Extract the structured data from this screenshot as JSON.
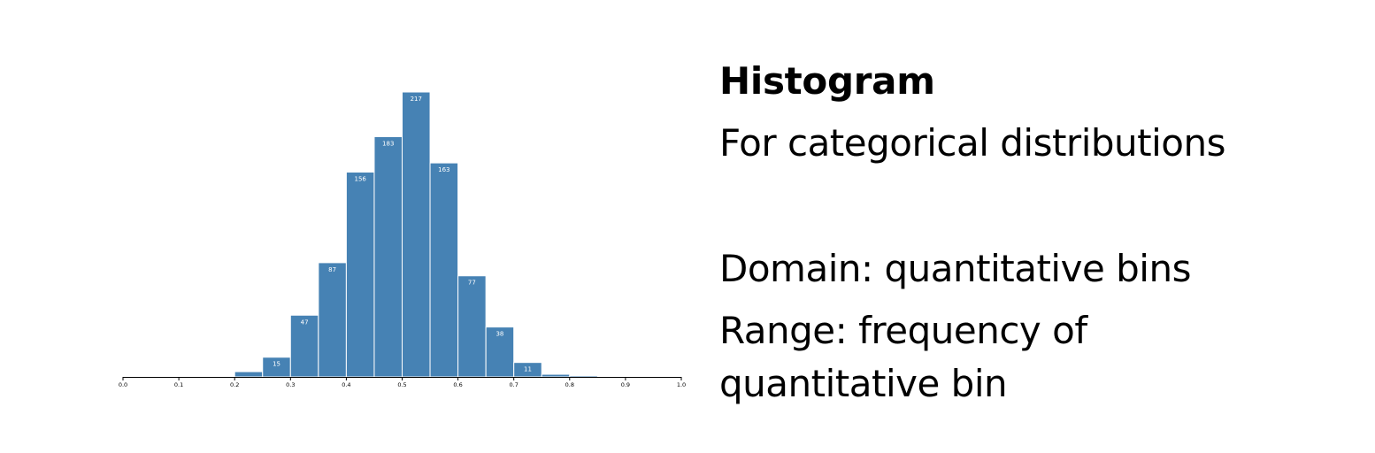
{
  "slide": {
    "title": "Histogram",
    "subtitle": "For categorical distributions",
    "domain_text": "Domain: quantitative bins",
    "range_text": "Range: frequency of quantitative bin"
  },
  "colors": {
    "bar_fill": "#4682b4",
    "bar_stroke": "#ffffff",
    "bar_label": "#ffffff",
    "axis": "#000000",
    "text": "#000000"
  },
  "chart_data": {
    "type": "bar",
    "title": "",
    "xlabel": "",
    "ylabel": "",
    "xlim": [
      0.0,
      1.0
    ],
    "ylim": [
      0,
      217
    ],
    "x_ticks": [
      "0.0",
      "0.1",
      "0.2",
      "0.3",
      "0.4",
      "0.5",
      "0.6",
      "0.7",
      "0.8",
      "0.9",
      "1.0"
    ],
    "bin_width": 0.05,
    "bins": [
      {
        "x0": 0.2,
        "x1": 0.25,
        "value": 4,
        "label": ""
      },
      {
        "x0": 0.25,
        "x1": 0.3,
        "value": 15,
        "label": "15"
      },
      {
        "x0": 0.3,
        "x1": 0.35,
        "value": 47,
        "label": "47"
      },
      {
        "x0": 0.35,
        "x1": 0.4,
        "value": 87,
        "label": "87"
      },
      {
        "x0": 0.4,
        "x1": 0.45,
        "value": 156,
        "label": "156"
      },
      {
        "x0": 0.45,
        "x1": 0.5,
        "value": 183,
        "label": "183"
      },
      {
        "x0": 0.5,
        "x1": 0.55,
        "value": 217,
        "label": "217"
      },
      {
        "x0": 0.55,
        "x1": 0.6,
        "value": 163,
        "label": "163"
      },
      {
        "x0": 0.6,
        "x1": 0.65,
        "value": 77,
        "label": "77"
      },
      {
        "x0": 0.65,
        "x1": 0.7,
        "value": 38,
        "label": "38"
      },
      {
        "x0": 0.7,
        "x1": 0.75,
        "value": 11,
        "label": "11"
      },
      {
        "x0": 0.75,
        "x1": 0.8,
        "value": 2,
        "label": ""
      },
      {
        "x0": 0.8,
        "x1": 0.85,
        "value": 1,
        "label": ""
      }
    ],
    "grid": false,
    "legend": "none"
  }
}
